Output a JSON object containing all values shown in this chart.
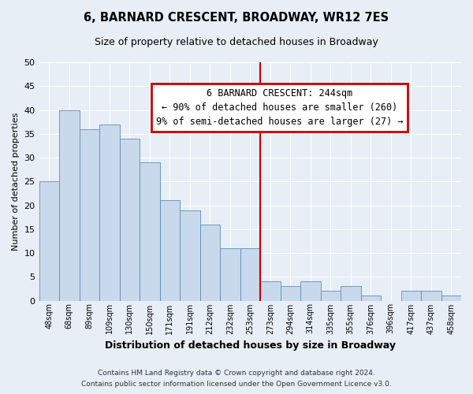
{
  "title": "6, BARNARD CRESCENT, BROADWAY, WR12 7ES",
  "subtitle": "Size of property relative to detached houses in Broadway",
  "xlabel": "Distribution of detached houses by size in Broadway",
  "ylabel": "Number of detached properties",
  "footer_line1": "Contains HM Land Registry data © Crown copyright and database right 2024.",
  "footer_line2": "Contains public sector information licensed under the Open Government Licence v3.0.",
  "bin_labels": [
    "48sqm",
    "68sqm",
    "89sqm",
    "109sqm",
    "130sqm",
    "150sqm",
    "171sqm",
    "191sqm",
    "212sqm",
    "232sqm",
    "253sqm",
    "273sqm",
    "294sqm",
    "314sqm",
    "335sqm",
    "355sqm",
    "376sqm",
    "396sqm",
    "417sqm",
    "437sqm",
    "458sqm"
  ],
  "bar_values": [
    25,
    40,
    36,
    37,
    34,
    29,
    21,
    19,
    16,
    11,
    11,
    4,
    3,
    4,
    2,
    3,
    1,
    0,
    2,
    2,
    1
  ],
  "bar_color": "#c9d9ec",
  "bar_edge_color": "#5b8db8",
  "bg_color": "#e8eef5",
  "grid_color": "#ffffff",
  "vline_x": 10.5,
  "vline_color": "#cc0000",
  "annotation_title": "6 BARNARD CRESCENT: 244sqm",
  "annotation_line1": "← 90% of detached houses are smaller (260)",
  "annotation_line2": "9% of semi-detached houses are larger (27) →",
  "annotation_box_color": "#cc0000",
  "ylim": [
    0,
    50
  ],
  "yticks": [
    0,
    5,
    10,
    15,
    20,
    25,
    30,
    35,
    40,
    45,
    50
  ]
}
